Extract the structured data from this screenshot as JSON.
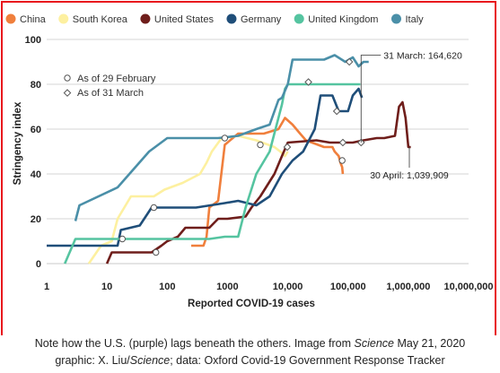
{
  "chart_data": {
    "type": "line",
    "title": "",
    "xlabel": "Reported COVID-19 cases",
    "ylabel": "Stringency index",
    "xscale": "log",
    "xlim": [
      1,
      10000000
    ],
    "ylim": [
      0,
      100
    ],
    "y_ticks": [
      0,
      20,
      40,
      60,
      80,
      100
    ],
    "x_ticks": [
      {
        "value": 1,
        "label": "1"
      },
      {
        "value": 10,
        "label": "10"
      },
      {
        "value": 100,
        "label": "100"
      },
      {
        "value": 1000,
        "label": "1000"
      },
      {
        "value": 10000,
        "label": "10,000"
      },
      {
        "value": 100000,
        "label": "100,000"
      },
      {
        "value": 1000000,
        "label": "1,000,000"
      },
      {
        "value": 10000000,
        "label": "10,000,000"
      }
    ],
    "grid": "horizontal",
    "legend_position": "top",
    "series": [
      {
        "name": "China",
        "color": "#f07f3c",
        "points": [
          [
            250,
            8
          ],
          [
            400,
            8
          ],
          [
            450,
            12
          ],
          [
            500,
            25
          ],
          [
            700,
            28
          ],
          [
            900,
            53
          ],
          [
            1500,
            58
          ],
          [
            2500,
            58
          ],
          [
            4000,
            58
          ],
          [
            7000,
            60
          ],
          [
            9000,
            65
          ],
          [
            12000,
            62
          ],
          [
            16000,
            58
          ],
          [
            20000,
            55
          ],
          [
            40000,
            52
          ],
          [
            55000,
            52
          ],
          [
            60000,
            50
          ],
          [
            70000,
            48
          ],
          [
            75000,
            45
          ],
          [
            80000,
            43
          ],
          [
            82000,
            40
          ]
        ]
      },
      {
        "name": "South Korea",
        "color": "#fdf0a0",
        "points": [
          [
            5,
            0
          ],
          [
            8,
            8
          ],
          [
            12,
            10
          ],
          [
            15,
            20
          ],
          [
            25,
            30
          ],
          [
            60,
            30
          ],
          [
            90,
            33
          ],
          [
            180,
            36
          ],
          [
            350,
            40
          ],
          [
            450,
            45
          ],
          [
            550,
            50
          ],
          [
            800,
            56
          ],
          [
            1500,
            57
          ],
          [
            3000,
            55
          ],
          [
            6000,
            52
          ],
          [
            7500,
            50
          ],
          [
            9000,
            48
          ],
          [
            10000,
            50
          ]
        ]
      },
      {
        "name": "United States",
        "color": "#6f1e1b",
        "points": [
          [
            10,
            0
          ],
          [
            12,
            5
          ],
          [
            35,
            5
          ],
          [
            55,
            5
          ],
          [
            80,
            8
          ],
          [
            100,
            10
          ],
          [
            150,
            12
          ],
          [
            200,
            16
          ],
          [
            500,
            16
          ],
          [
            700,
            20
          ],
          [
            1000,
            20
          ],
          [
            2000,
            21
          ],
          [
            2500,
            25
          ],
          [
            3500,
            30
          ],
          [
            6000,
            40
          ],
          [
            8000,
            48
          ],
          [
            10000,
            54
          ],
          [
            30000,
            55
          ],
          [
            50000,
            54
          ],
          [
            120000,
            54
          ],
          [
            180000,
            55
          ],
          [
            300000,
            56
          ],
          [
            400000,
            56
          ],
          [
            600000,
            57
          ],
          [
            700000,
            70
          ],
          [
            800000,
            72
          ],
          [
            900000,
            65
          ],
          [
            1000000,
            52
          ],
          [
            1100000,
            52
          ]
        ]
      },
      {
        "name": "Germany",
        "color": "#1f4e79",
        "points": [
          [
            1,
            8
          ],
          [
            15,
            8
          ],
          [
            17,
            15
          ],
          [
            35,
            17
          ],
          [
            55,
            25
          ],
          [
            300,
            25
          ],
          [
            900,
            27
          ],
          [
            1500,
            28
          ],
          [
            3000,
            26
          ],
          [
            5000,
            30
          ],
          [
            8000,
            40
          ],
          [
            12000,
            46
          ],
          [
            18000,
            50
          ],
          [
            28000,
            60
          ],
          [
            35000,
            75
          ],
          [
            55000,
            75
          ],
          [
            70000,
            68
          ],
          [
            100000,
            68
          ],
          [
            120000,
            75
          ],
          [
            150000,
            78
          ],
          [
            160000,
            76
          ],
          [
            170000,
            74
          ]
        ]
      },
      {
        "name": "United Kingdom",
        "color": "#55c4a0",
        "points": [
          [
            2,
            0
          ],
          [
            3,
            11
          ],
          [
            10,
            11
          ],
          [
            20,
            11
          ],
          [
            500,
            11
          ],
          [
            900,
            12
          ],
          [
            1500,
            12
          ],
          [
            2000,
            25
          ],
          [
            3000,
            40
          ],
          [
            5000,
            50
          ],
          [
            8000,
            71
          ],
          [
            9000,
            78
          ],
          [
            10000,
            80
          ],
          [
            12000,
            80
          ],
          [
            30000,
            80
          ],
          [
            60000,
            80
          ],
          [
            80000,
            80
          ],
          [
            100000,
            80
          ],
          [
            140000,
            80
          ],
          [
            160000,
            80
          ]
        ]
      },
      {
        "name": "Italy",
        "color": "#4a8fa8",
        "points": [
          [
            3,
            19
          ],
          [
            3.5,
            26
          ],
          [
            15,
            34
          ],
          [
            50,
            50
          ],
          [
            100,
            56
          ],
          [
            700,
            56
          ],
          [
            1500,
            57
          ],
          [
            3000,
            60
          ],
          [
            5000,
            62
          ],
          [
            7000,
            73
          ],
          [
            8000,
            74
          ],
          [
            10000,
            80
          ],
          [
            12000,
            91
          ],
          [
            20000,
            91
          ],
          [
            40000,
            91
          ],
          [
            60000,
            93
          ],
          [
            90000,
            90
          ],
          [
            120000,
            92
          ],
          [
            150000,
            88
          ],
          [
            180000,
            90
          ],
          [
            220000,
            90
          ]
        ]
      }
    ],
    "markers": {
      "circle_label": "As of 29 February",
      "diamond_label": "As of 31 March",
      "circles": [
        {
          "series": "China",
          "x": 80000,
          "y": 46
        },
        {
          "series": "South Korea",
          "x": 3500,
          "y": 53
        },
        {
          "series": "United States",
          "x": 65,
          "y": 5
        },
        {
          "series": "Germany",
          "x": 60,
          "y": 25
        },
        {
          "series": "United Kingdom",
          "x": 18,
          "y": 11
        },
        {
          "series": "Italy",
          "x": 900,
          "y": 56
        }
      ],
      "diamonds": [
        {
          "series": "China",
          "x": 82000,
          "y": 54
        },
        {
          "series": "South Korea",
          "x": 9800,
          "y": 52
        },
        {
          "series": "United States",
          "x": 164620,
          "y": 54
        },
        {
          "series": "Germany",
          "x": 65000,
          "y": 68
        },
        {
          "series": "United Kingdom",
          "x": 22000,
          "y": 81
        },
        {
          "series": "Italy",
          "x": 105000,
          "y": 90
        }
      ]
    },
    "annotations": [
      {
        "text": "31 March: 164,620",
        "x": 164620,
        "y": 54
      },
      {
        "text": "30 April: 1,039,909",
        "x": 1039909,
        "y": 52
      }
    ]
  },
  "caption": {
    "line1_prefix": "Note how the U.S. (purple) lags beneath the others. Image from ",
    "line1_source": "Science",
    "line1_suffix": " May 21, 2020",
    "line2_prefix": "graphic: X. Liu/",
    "line2_source": "Science",
    "line2_suffix": "; data: Oxford Covid-19 Government Response Tracker"
  }
}
